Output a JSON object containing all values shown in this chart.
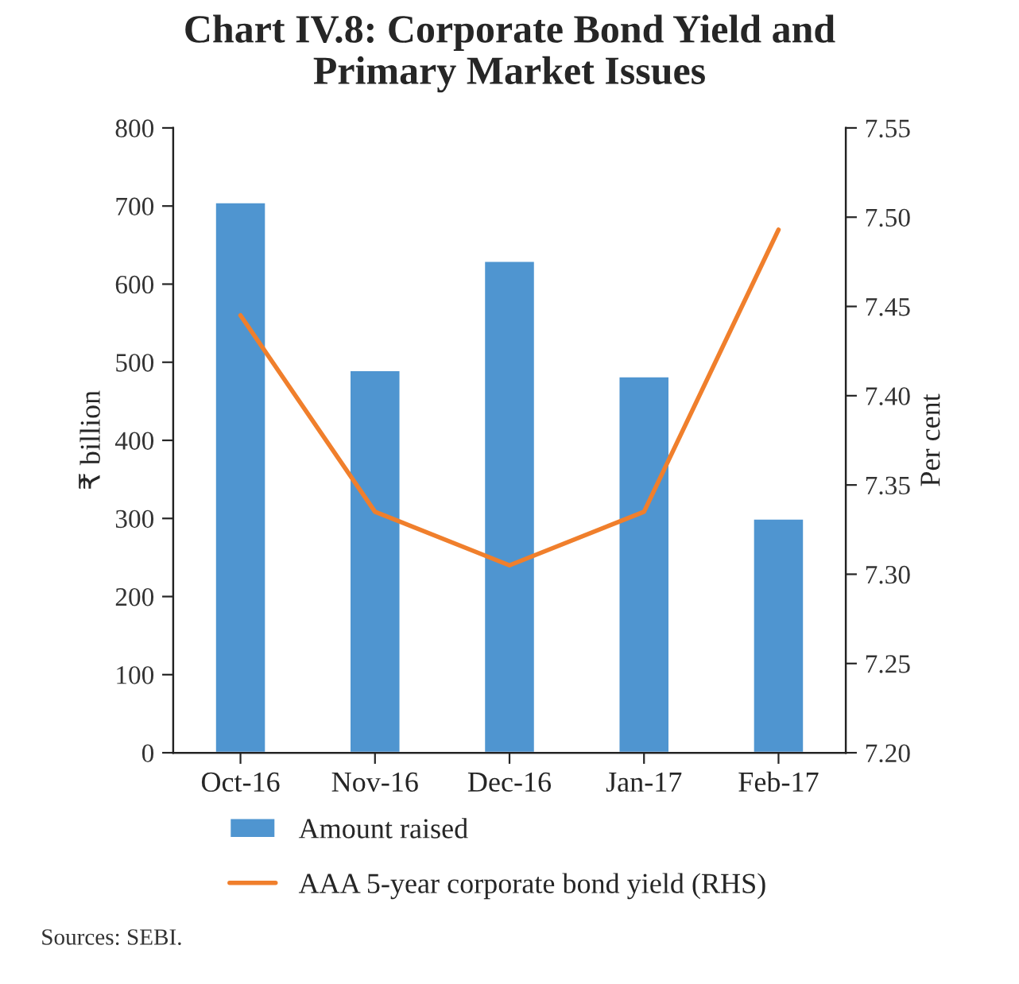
{
  "chart_data": {
    "type": "bar",
    "title": "Chart IV.8: Corporate Bond Yield and\nPrimary Market Issues",
    "categories": [
      "Oct-16",
      "Nov-16",
      "Dec-16",
      "Jan-17",
      "Feb-17"
    ],
    "series": [
      {
        "name": "Amount raised",
        "color": "#4f95d0",
        "values": [
          705,
          490,
          630,
          482,
          300
        ]
      },
      {
        "name": "AAA 5-year corporate bond yield (RHS)",
        "type": "line",
        "axis": "y2",
        "color": "#f07f2c",
        "values": [
          7.445,
          7.335,
          7.305,
          7.335,
          7.493
        ]
      }
    ],
    "ylabel": "₹ billion",
    "y2label": "Per cent",
    "ylim": [
      0,
      800
    ],
    "yticks": [
      0,
      100,
      200,
      300,
      400,
      500,
      600,
      700,
      800
    ],
    "y2lim": [
      7.2,
      7.55
    ],
    "y2ticks": [
      {
        "value": 7.2,
        "label": "7.20"
      },
      {
        "value": 7.25,
        "label": "7.25"
      },
      {
        "value": 7.3,
        "label": "7.30"
      },
      {
        "value": 7.35,
        "label": "7.35"
      },
      {
        "value": 7.4,
        "label": "7.40"
      },
      {
        "value": 7.45,
        "label": "7.45"
      },
      {
        "value": 7.5,
        "label": "7.50"
      },
      {
        "value": 7.55,
        "label": "7.55"
      }
    ],
    "grid": false,
    "legend": "bottom",
    "marker": "none",
    "line_style": "solid",
    "annotations": [
      "Sources: SEBI."
    ]
  }
}
